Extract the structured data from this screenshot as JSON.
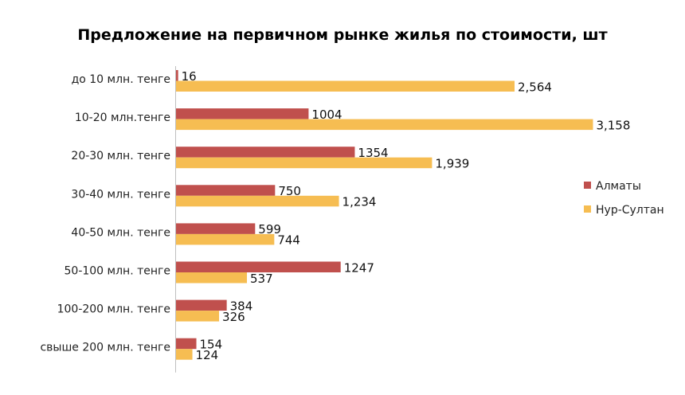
{
  "chart_data": {
    "type": "bar",
    "orientation": "horizontal",
    "title": "Предложение на первичном рынке жилья по стоимости, шт",
    "xlabel": "",
    "ylabel": "",
    "xlim": [
      0,
      3300
    ],
    "grid": false,
    "legend_position": "right",
    "categories": [
      "до 10 млн. тенге",
      "10-20 млн.тенге",
      "20-30 млн. тенге",
      "30-40 млн. тенге",
      "40-50 млн. тенге",
      "50-100 млн. тенге",
      "100-200 млн. тенге",
      "свыше 200 млн. тенге"
    ],
    "series": [
      {
        "name": "Алматы",
        "color": "#c0504d",
        "values": [
          16,
          1004,
          1354,
          750,
          599,
          1247,
          384,
          154
        ],
        "labels": [
          "16",
          "1004",
          "1354",
          "750",
          "599",
          "1247",
          "384",
          "154"
        ]
      },
      {
        "name": "Нур-Султан",
        "color": "#f6bd52",
        "values": [
          2564,
          3158,
          1939,
          1234,
          744,
          537,
          326,
          124
        ],
        "labels": [
          "2,564",
          "3,158",
          "1,939",
          "1,234",
          "744",
          "537",
          "326",
          "124"
        ]
      }
    ]
  }
}
